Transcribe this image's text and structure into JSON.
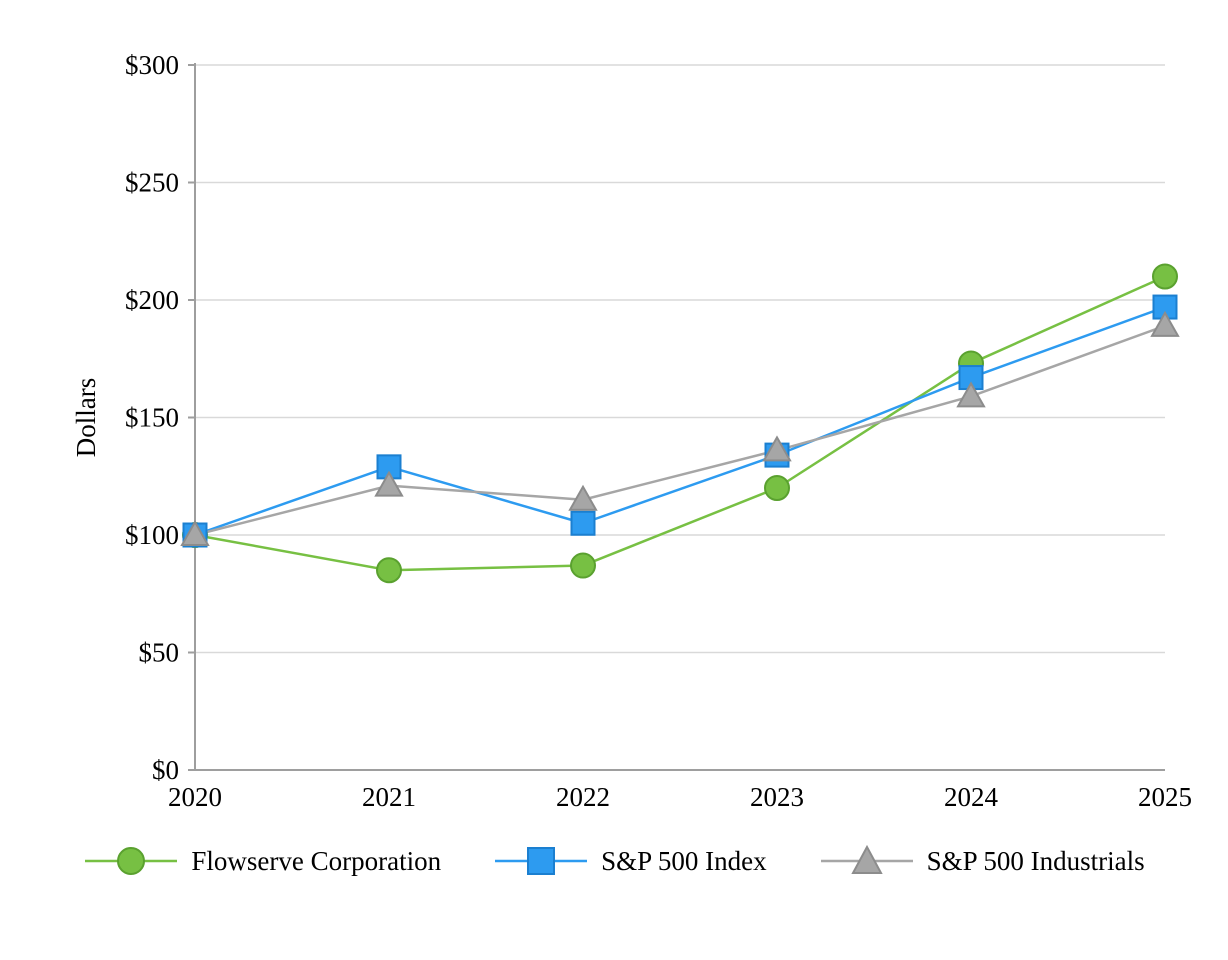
{
  "chart_data": {
    "type": "line",
    "title": "",
    "xlabel": "",
    "ylabel": "Dollars",
    "categories": [
      "2020",
      "2021",
      "2022",
      "2023",
      "2024",
      "2025"
    ],
    "series": [
      {
        "name": "Flowserve Corporation",
        "marker": "circle",
        "color": "#77C043",
        "edge_color": "#5AA12F",
        "values": [
          100,
          85,
          87,
          120,
          173,
          210
        ]
      },
      {
        "name": "S&P 500 Index",
        "marker": "square",
        "color": "#2D9BF0",
        "edge_color": "#1B7FD0",
        "values": [
          100,
          129,
          105,
          134,
          167,
          197
        ]
      },
      {
        "name": "S&P 500 Industrials",
        "marker": "triangle",
        "color": "#A6A6A6",
        "edge_color": "#8C8C8C",
        "values": [
          100,
          121,
          115,
          136,
          159,
          189
        ]
      }
    ],
    "ylim": [
      0,
      300
    ],
    "y_tick_values": [
      0,
      50,
      100,
      150,
      200,
      250,
      300
    ],
    "y_tick_labels": [
      "$0",
      "$50",
      "$100",
      "$150",
      "$200",
      "$250",
      "$300"
    ],
    "grid": true,
    "legend_position": "bottom"
  },
  "colors": {
    "background": "#FFFFFF",
    "grid": "#D9D9D9",
    "axis": "#9E9E9E",
    "text": "#000000"
  }
}
